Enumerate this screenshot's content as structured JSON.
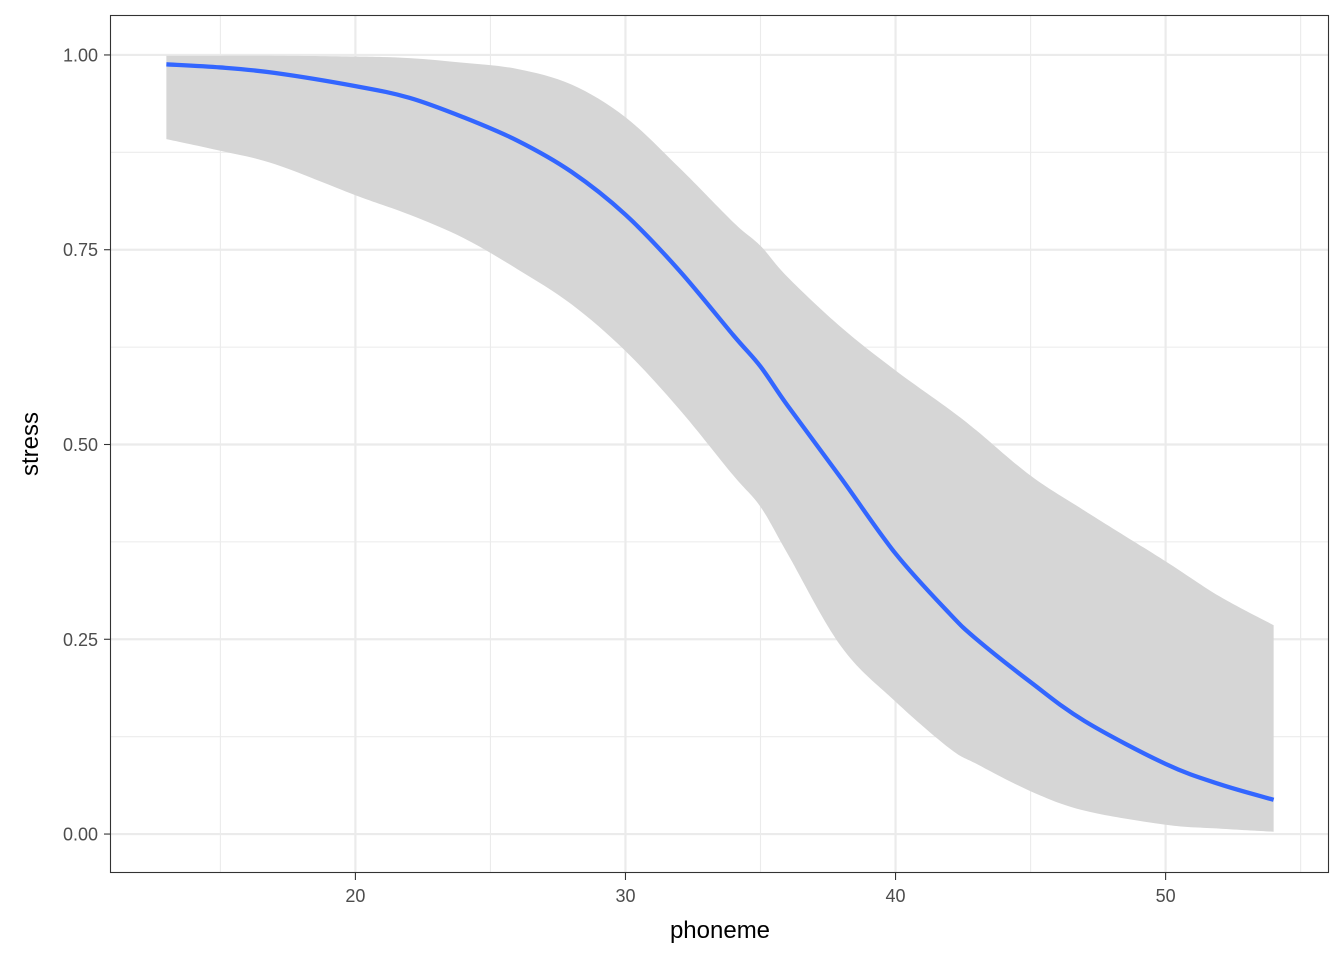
{
  "chart_data": {
    "type": "line",
    "title": "",
    "xlabel": "phoneme",
    "ylabel": "stress",
    "xlim": [
      10.95,
      56.05
    ],
    "ylim": [
      -0.05,
      1.05
    ],
    "x_ticks": [
      20,
      30,
      40,
      50
    ],
    "x_tick_labels": [
      "20",
      "30",
      "40",
      "50"
    ],
    "x_minor_ticks": [
      15,
      25,
      35,
      45,
      55
    ],
    "y_ticks": [
      0,
      0.25,
      0.5,
      0.75,
      1.0
    ],
    "y_tick_labels": [
      "0.00",
      "0.25",
      "0.50",
      "0.75",
      "1.00"
    ],
    "y_minor_ticks": [
      0.125,
      0.375,
      0.625,
      0.875
    ],
    "grid": true,
    "legend": "none",
    "series": [
      {
        "color": "#3366ff",
        "fill": "#d6d6d6",
        "x": [
          13,
          15,
          17,
          20,
          22,
          24,
          26,
          28,
          30,
          32,
          34,
          35,
          36,
          38,
          40,
          42,
          43,
          45,
          47,
          50,
          52,
          54
        ],
        "y": [
          0.988,
          0.984,
          0.977,
          0.96,
          0.945,
          0.92,
          0.89,
          0.85,
          0.795,
          0.723,
          0.64,
          0.6,
          0.55,
          0.456,
          0.36,
          0.283,
          0.25,
          0.195,
          0.145,
          0.09,
          0.064,
          0.044
        ],
        "lower": [
          0.892,
          0.877,
          0.86,
          0.82,
          0.795,
          0.765,
          0.725,
          0.68,
          0.62,
          0.545,
          0.46,
          0.42,
          0.36,
          0.24,
          0.17,
          0.11,
          0.09,
          0.055,
          0.03,
          0.012,
          0.007,
          0.003
        ],
        "upper": [
          0.999,
          0.999,
          0.999,
          0.998,
          0.996,
          0.99,
          0.982,
          0.962,
          0.92,
          0.855,
          0.785,
          0.755,
          0.715,
          0.65,
          0.595,
          0.545,
          0.518,
          0.46,
          0.415,
          0.35,
          0.305,
          0.268
        ]
      }
    ]
  }
}
